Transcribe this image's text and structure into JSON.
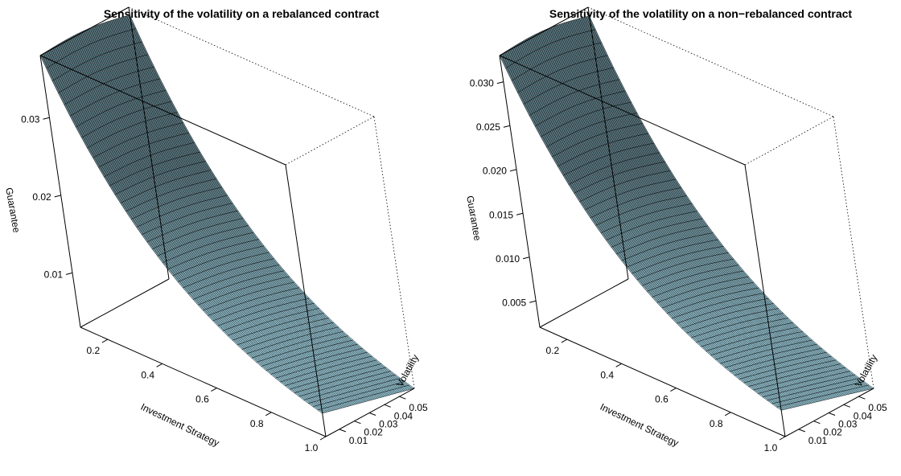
{
  "chart_data": [
    {
      "type": "surface",
      "title": "Sensitivity of the volatility on a rebalanced contract",
      "xlabel": "Investment Strategy",
      "ylabel": "Volatility",
      "zlabel": "Guarantee",
      "xlim": [
        0.1,
        1.0
      ],
      "ylim": [
        0.001,
        0.06
      ],
      "zlim": [
        0.003,
        0.038
      ],
      "x_ticks": [
        "0.2",
        "0.4",
        "0.6",
        "0.8",
        "1.0"
      ],
      "y_ticks": [
        "0.01",
        "0.02",
        "0.03",
        "0.04",
        "0.05"
      ],
      "z_ticks": [
        "0.01",
        "0.02",
        "0.03"
      ],
      "surface_color": "#a8dcec",
      "corner_values": {
        "x_min_y_min": 0.038,
        "x_min_y_max": 0.037,
        "x_max_y_min": 0.006,
        "x_max_y_max": 0.003
      },
      "grid_lines": 55
    },
    {
      "type": "surface",
      "title": "Sensitivity of the volatility on a non−rebalanced contract",
      "xlabel": "Investment Strategy",
      "ylabel": "Volatility",
      "zlabel": "Guarantee",
      "xlim": [
        0.1,
        1.0
      ],
      "ylim": [
        0.001,
        0.06
      ],
      "zlim": [
        0.002,
        0.033
      ],
      "x_ticks": [
        "0.2",
        "0.4",
        "0.6",
        "0.8",
        "1.0"
      ],
      "y_ticks": [
        "0.01",
        "0.02",
        "0.03",
        "0.04",
        "0.05"
      ],
      "z_ticks": [
        "0.005",
        "0.010",
        "0.015",
        "0.020",
        "0.025",
        "0.030"
      ],
      "surface_color": "#a8dcec",
      "corner_values": {
        "x_min_y_min": 0.033,
        "x_min_y_max": 0.032,
        "x_max_y_min": 0.005,
        "x_max_y_max": 0.002
      },
      "grid_lines": 55
    }
  ]
}
